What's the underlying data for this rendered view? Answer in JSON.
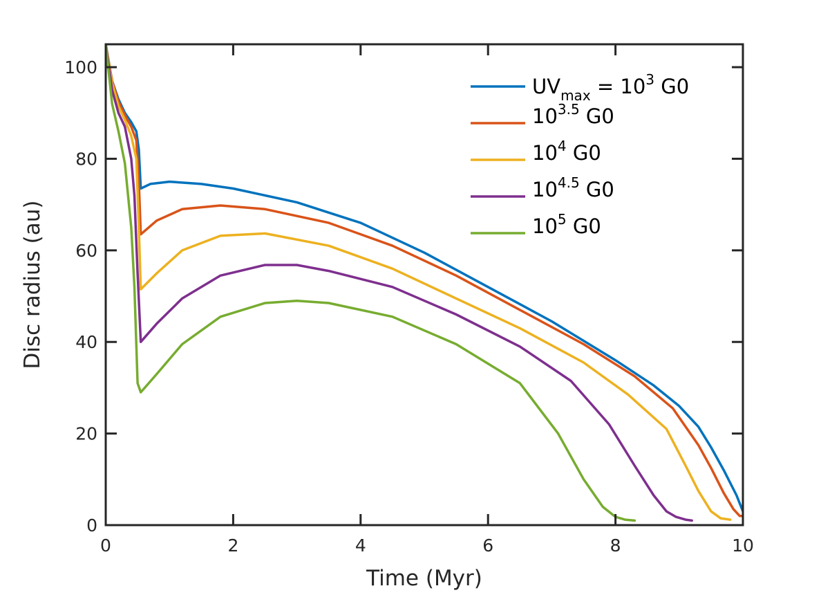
{
  "chart_data": {
    "type": "line",
    "title": "",
    "xlabel": "Time (Myr)",
    "ylabel": "Disc radius (au)",
    "xlim": [
      0,
      10
    ],
    "ylim": [
      0,
      105
    ],
    "xticks": [
      "0",
      "2",
      "4",
      "6",
      "8",
      "10"
    ],
    "yticks": [
      "0",
      "20",
      "40",
      "60",
      "80",
      "100"
    ],
    "grid": false,
    "legend_position": "top-right",
    "series": [
      {
        "name": "UVmax = 10^3 G0",
        "legend": {
          "main": "UV",
          "sub": "max",
          "mid": " = 10",
          "sup": "3",
          "tail": " G0"
        },
        "color": "#0072BD",
        "x": [
          0,
          0.1,
          0.2,
          0.3,
          0.4,
          0.48,
          0.52,
          0.55,
          0.7,
          1.0,
          1.5,
          2,
          3,
          4,
          5,
          6,
          7,
          8,
          8.6,
          9.0,
          9.3,
          9.5,
          9.7,
          9.9,
          10.0
        ],
        "y": [
          105,
          97,
          93,
          90,
          88,
          86,
          82,
          73.5,
          74.5,
          75,
          74.5,
          73.5,
          70.5,
          66,
          59.5,
          52,
          44.5,
          36,
          30.5,
          26,
          21.5,
          17,
          12,
          6.5,
          3
        ]
      },
      {
        "name": "10^3.5 G0",
        "legend": {
          "main": "",
          "sub": "",
          "mid": "10",
          "sup": "3.5",
          "tail": " G0"
        },
        "color": "#D95319",
        "x": [
          0,
          0.1,
          0.2,
          0.3,
          0.4,
          0.48,
          0.52,
          0.55,
          0.8,
          1.2,
          1.8,
          2.5,
          3.5,
          4.5,
          5.5,
          6.5,
          7.5,
          8.3,
          8.9,
          9.3,
          9.5,
          9.7,
          9.85,
          9.95,
          10.0
        ],
        "y": [
          105,
          97,
          92.5,
          89.5,
          87,
          84,
          75,
          63.5,
          66.5,
          69,
          69.8,
          69,
          66,
          61,
          54.5,
          47,
          39.5,
          32.5,
          25.5,
          17.5,
          12.5,
          7,
          3.5,
          2,
          2
        ]
      },
      {
        "name": "10^4 G0",
        "legend": {
          "main": "",
          "sub": "",
          "mid": "10",
          "sup": "4",
          "tail": " G0"
        },
        "color": "#EDB120",
        "x": [
          0,
          0.1,
          0.2,
          0.3,
          0.4,
          0.48,
          0.52,
          0.55,
          0.8,
          1.2,
          1.8,
          2.5,
          3.5,
          4.5,
          5.5,
          6.5,
          7.5,
          8.2,
          8.8,
          9.1,
          9.3,
          9.5,
          9.65,
          9.8
        ],
        "y": [
          105,
          96.5,
          91.5,
          88.5,
          85,
          80,
          65,
          51.5,
          55,
          60,
          63.2,
          63.7,
          61,
          56,
          49.5,
          43,
          35.5,
          28.5,
          21,
          13,
          7.5,
          3,
          1.5,
          1.2
        ]
      },
      {
        "name": "10^4.5 G0",
        "legend": {
          "main": "",
          "sub": "",
          "mid": "10",
          "sup": "4.5",
          "tail": " G0"
        },
        "color": "#7E2F8E",
        "x": [
          0,
          0.1,
          0.2,
          0.3,
          0.4,
          0.45,
          0.5,
          0.55,
          0.8,
          1.2,
          1.8,
          2.5,
          3.0,
          3.5,
          4.5,
          5.5,
          6.5,
          7.3,
          7.9,
          8.3,
          8.6,
          8.8,
          8.95,
          9.1,
          9.2
        ],
        "y": [
          105,
          95,
          90,
          87,
          80,
          72,
          55,
          40,
          44,
          49.5,
          54.5,
          56.8,
          56.8,
          55.5,
          52,
          46,
          39,
          31.5,
          22,
          13,
          6.5,
          3,
          1.8,
          1.2,
          1
        ]
      },
      {
        "name": "10^5 G0",
        "legend": {
          "main": "",
          "sub": "",
          "mid": "10",
          "sup": "5",
          "tail": " G0"
        },
        "color": "#77AC30",
        "x": [
          0,
          0.1,
          0.2,
          0.3,
          0.4,
          0.45,
          0.5,
          0.55,
          0.8,
          1.2,
          1.8,
          2.5,
          3.0,
          3.5,
          4.5,
          5.5,
          6.5,
          7.1,
          7.5,
          7.8,
          8.0,
          8.15,
          8.3
        ],
        "y": [
          105,
          92,
          86,
          79,
          65,
          52,
          31,
          29,
          33,
          39.5,
          45.5,
          48.5,
          49,
          48.5,
          45.5,
          39.5,
          31,
          20,
          10,
          4,
          1.8,
          1.2,
          1
        ]
      }
    ]
  }
}
